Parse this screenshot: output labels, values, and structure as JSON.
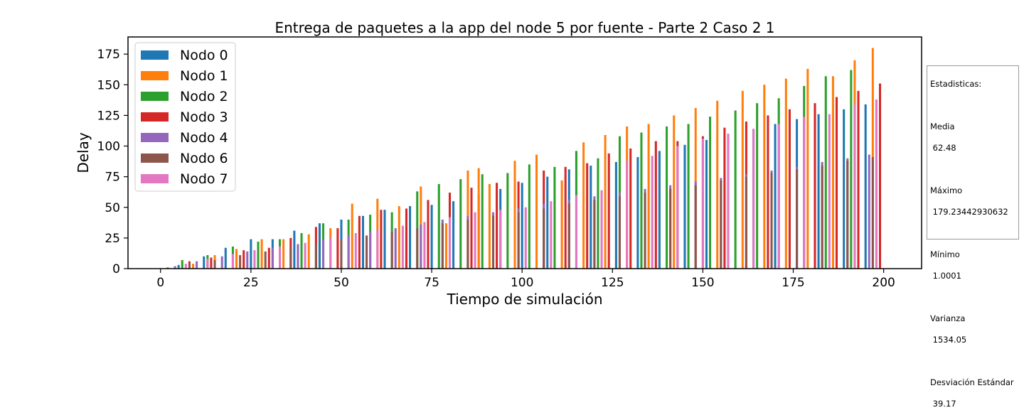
{
  "chart_data": {
    "type": "bar",
    "title": "Entrega de paquetes a la app del node 5 por fuente - Parte 2 Caso 2 1",
    "xlabel": "Tiempo de simulación",
    "ylabel": "Delay",
    "xlim": [
      -9,
      210.5
    ],
    "ylim": [
      0,
      189
    ],
    "xticks": [
      0,
      25,
      50,
      75,
      100,
      125,
      150,
      175,
      200
    ],
    "yticks": [
      0,
      25,
      50,
      75,
      100,
      125,
      150,
      175
    ],
    "legend_position": "top-left",
    "grid": false,
    "bar_width": 0.6,
    "series": [
      {
        "name": "Nodo 0",
        "color": "#1f77b4",
        "x": [
          5,
          12,
          18,
          25,
          31,
          37,
          44,
          50,
          56,
          62,
          69,
          75,
          81,
          88,
          94,
          100,
          107,
          113,
          119,
          126,
          132,
          138,
          145,
          151,
          157,
          164,
          170,
          176,
          182,
          189,
          195
        ],
        "y": [
          3,
          10,
          17,
          24,
          24,
          31,
          37,
          40,
          43,
          48,
          51,
          52,
          55,
          60,
          65,
          70,
          75,
          81,
          84,
          87,
          91,
          96,
          101,
          105,
          110,
          114,
          118,
          122,
          126,
          130,
          134
        ]
      },
      {
        "name": "Nodo 1",
        "color": "#ff7f0e",
        "x": [
          9,
          15,
          21,
          28,
          34,
          41,
          47,
          53,
          60,
          66,
          72,
          79,
          85,
          88,
          91,
          98,
          104,
          111,
          117,
          123,
          129,
          135,
          142,
          148,
          154,
          161,
          167,
          173,
          179,
          186,
          192,
          197
        ],
        "y": [
          4,
          11,
          16,
          24,
          24,
          28,
          33,
          53,
          57,
          51,
          67,
          37,
          80,
          82,
          69,
          88,
          93,
          72,
          103,
          109,
          116,
          118,
          125,
          131,
          137,
          145,
          150,
          155,
          163,
          157,
          170,
          180
        ]
      },
      {
        "name": "Nodo 2",
        "color": "#2ca02c",
        "x": [
          6,
          13,
          20,
          27,
          33,
          39,
          45,
          52,
          58,
          64,
          71,
          77,
          83,
          89,
          96,
          102,
          109,
          115,
          121,
          127,
          133,
          140,
          146,
          152,
          159,
          165,
          171,
          178,
          184,
          191
        ],
        "y": [
          7,
          11,
          18,
          22,
          24,
          29,
          37,
          40,
          44,
          46,
          63,
          69,
          73,
          77,
          78,
          85,
          83,
          96,
          90,
          108,
          111,
          116,
          118,
          124,
          129,
          135,
          139,
          149,
          157,
          162
        ]
      },
      {
        "name": "Nodo 3",
        "color": "#d62728",
        "x": [
          8,
          14,
          23,
          30,
          36,
          43,
          49,
          55,
          61,
          68,
          74,
          80,
          86,
          93,
          99,
          106,
          112,
          118,
          124,
          130,
          137,
          143,
          150,
          156,
          162,
          168,
          174,
          181,
          187,
          193,
          199
        ],
        "y": [
          6,
          9,
          15,
          17,
          25,
          34,
          33,
          43,
          48,
          49,
          56,
          62,
          66,
          70,
          71,
          80,
          83,
          86,
          94,
          98,
          104,
          104,
          108,
          115,
          120,
          125,
          130,
          135,
          140,
          145,
          151
        ]
      },
      {
        "name": "Nodo 4",
        "color": "#9467bd",
        "x": [
          4,
          10,
          17,
          24,
          31,
          38,
          45,
          52,
          58,
          65,
          72,
          78,
          85,
          92,
          99,
          106,
          113,
          120,
          127,
          134,
          141,
          148,
          155,
          162,
          169,
          176,
          183,
          190,
          196
        ],
        "y": [
          2,
          6,
          10,
          14,
          17,
          20,
          24,
          27,
          30,
          33,
          36,
          40,
          43,
          46,
          49,
          53,
          56,
          59,
          62,
          65,
          68,
          71,
          74,
          77,
          80,
          83,
          87,
          90,
          93
        ]
      },
      {
        "name": "Nodo 6",
        "color": "#8c564b",
        "x": [
          2,
          8,
          15,
          22,
          29,
          36,
          43,
          50,
          57,
          64,
          71,
          78,
          85,
          92,
          99,
          106,
          113,
          120,
          127,
          134,
          141,
          148,
          155,
          162,
          169,
          176,
          183,
          190,
          197
        ],
        "y": [
          1,
          4,
          7,
          11,
          14,
          17,
          20,
          24,
          27,
          30,
          33,
          37,
          40,
          43,
          46,
          49,
          53,
          56,
          59,
          62,
          65,
          68,
          72,
          75,
          78,
          81,
          84,
          88,
          91
        ]
      },
      {
        "name": "Nodo 7",
        "color": "#e377c2",
        "x": [
          7,
          13,
          20,
          26,
          33,
          40,
          47,
          54,
          60,
          67,
          73,
          80,
          87,
          94,
          101,
          108,
          115,
          122,
          129,
          136,
          143,
          150,
          157,
          164,
          171,
          178,
          185,
          192,
          198
        ],
        "y": [
          4,
          8,
          12,
          15,
          18,
          21,
          25,
          29,
          32,
          35,
          38,
          42,
          46,
          48,
          50,
          55,
          60,
          64,
          88,
          92,
          100,
          106,
          110,
          114,
          118,
          124,
          126,
          134,
          138
        ]
      }
    ]
  },
  "stats": {
    "title": "Estadisticas:",
    "items": [
      {
        "label": "Media",
        "value": " 62.48"
      },
      {
        "label": "Máximo",
        "value": " 179.23442930632"
      },
      {
        "label": "Mínimo",
        "value": " 1.0001"
      },
      {
        "label": "Varianza",
        "value": " 1534.05"
      },
      {
        "label": "Desviación Estándar",
        "value": " 39.17"
      }
    ]
  }
}
